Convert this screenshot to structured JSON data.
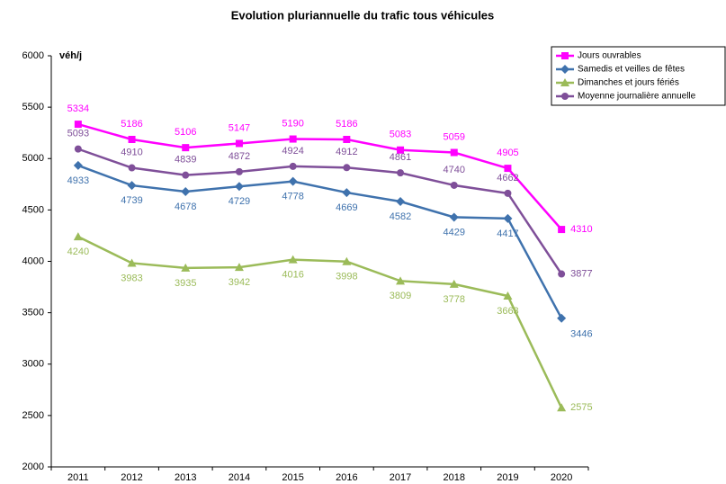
{
  "chart_data": {
    "type": "line",
    "title": "Evolution pluriannuelle du trafic tous véhicules",
    "ylabel": "véh/j",
    "categories": [
      "2011",
      "2012",
      "2013",
      "2014",
      "2015",
      "2016",
      "2017",
      "2018",
      "2019",
      "2020"
    ],
    "series": [
      {
        "name": "Jours ouvrables",
        "color": "#ff00ff",
        "marker": "square",
        "values": [
          5334,
          5186,
          5106,
          5147,
          5190,
          5186,
          5083,
          5059,
          4905,
          4310
        ]
      },
      {
        "name": "Samedis et veilles de fêtes",
        "color": "#3f72ad",
        "marker": "diamond",
        "values": [
          4933,
          4739,
          4678,
          4729,
          4778,
          4669,
          4582,
          4429,
          4417,
          3446
        ]
      },
      {
        "name": "Dimanches et jours fériés",
        "color": "#9bbb59",
        "marker": "triangle",
        "values": [
          4240,
          3983,
          3935,
          3942,
          4016,
          3998,
          3809,
          3778,
          3663,
          2575
        ]
      },
      {
        "name": "Moyenne journalière annuelle",
        "color": "#7f4f99",
        "marker": "circle",
        "values": [
          5093,
          4910,
          4839,
          4872,
          4924,
          4912,
          4861,
          4740,
          4662,
          3877
        ]
      }
    ],
    "ylim": [
      2000,
      6000
    ],
    "yticks": [
      2000,
      2500,
      3000,
      3500,
      4000,
      4500,
      5000,
      5500,
      6000
    ],
    "grid": false,
    "legend": "top-right"
  }
}
